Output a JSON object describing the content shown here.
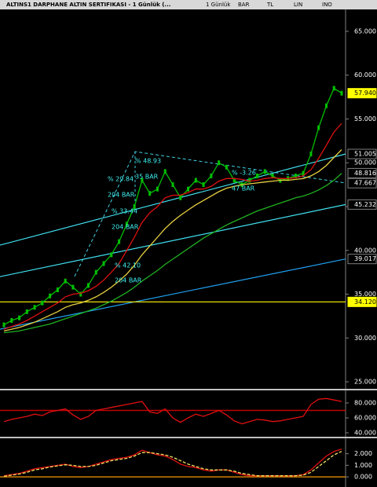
{
  "toolbar": {
    "title": "ALTINS1 DARPHANE ALTIN SERTIFIKASI - 1 Günlük (...",
    "items": [
      "1 Günlük",
      "BAR",
      "TL",
      "LIN",
      "INO"
    ]
  },
  "chart_data": [
    {
      "type": "line",
      "categories": [
        null,
        null,
        null,
        null,
        null,
        null,
        null,
        null,
        null,
        null,
        null,
        null,
        null,
        null,
        null,
        null,
        null,
        null,
        null,
        null,
        null,
        null,
        null,
        null,
        null,
        null,
        null,
        null,
        null,
        null,
        null,
        null,
        null,
        null,
        null,
        null,
        null,
        null,
        null,
        null,
        null,
        null,
        null,
        null,
        null
      ],
      "series": [
        {
          "color": "#00c000",
          "values": [
            31.5,
            32,
            32.3,
            33,
            33.5,
            34,
            34.8,
            35.5,
            36.5,
            35.8,
            35,
            36,
            37.5,
            38.5,
            39.5,
            41,
            43,
            45,
            48,
            46.5,
            47,
            49,
            47.5,
            46,
            47,
            48,
            47.5,
            48.5,
            50,
            49.5,
            48,
            47.5,
            48,
            48.5,
            49,
            48.5,
            48,
            48.2,
            48.5,
            48.8,
            51,
            54,
            56.5,
            58.5,
            57.94
          ]
        },
        {
          "color": "#e01010",
          "values": [
            31,
            31.3,
            31.6,
            32,
            32.5,
            33,
            33.5,
            34,
            34.7,
            35,
            35.1,
            35.4,
            35.9,
            36.6,
            37.5,
            38.5,
            40,
            41.5,
            43.2,
            44.3,
            45,
            46,
            46.3,
            46.3,
            46.6,
            47,
            47,
            47.3,
            47.9,
            48.2,
            48.2,
            48.1,
            47.9,
            48,
            48.2,
            48.3,
            48.2,
            48.2,
            48.3,
            48.5,
            49.2,
            50.5,
            52,
            53.5,
            54.5
          ]
        },
        {
          "color": "#e8d040",
          "values": [
            30.8,
            31,
            31.2,
            31.5,
            31.8,
            32.2,
            32.6,
            33,
            33.5,
            33.8,
            34,
            34.3,
            34.7,
            35.2,
            35.8,
            36.5,
            37.3,
            38.3,
            39.5,
            40.5,
            41.5,
            42.5,
            43.3,
            44,
            44.6,
            45.2,
            45.7,
            46.2,
            46.7,
            47.1,
            47.3,
            47.5,
            47.6,
            47.7,
            47.8,
            47.9,
            48,
            48,
            48.1,
            48.2,
            48.5,
            49,
            49.7,
            50.6,
            51.5
          ]
        },
        {
          "color": "#20b020",
          "values": [
            30.6,
            30.7,
            30.8,
            31,
            31.2,
            31.4,
            31.6,
            31.9,
            32.2,
            32.5,
            32.8,
            33.1,
            33.4,
            33.8,
            34.2,
            34.7,
            35.2,
            35.8,
            36.5,
            37.1,
            37.7,
            38.4,
            39,
            39.6,
            40.2,
            40.8,
            41.4,
            41.9,
            42.4,
            42.9,
            43.3,
            43.7,
            44.1,
            44.5,
            44.8,
            45.1,
            45.4,
            45.7,
            46,
            46.2,
            46.5,
            46.9,
            47.4,
            48,
            48.8
          ]
        }
      ],
      "ylim": [
        24.2,
        67.5
      ],
      "yticks": [
        {
          "value": 25,
          "label": "25.000"
        },
        {
          "value": 30,
          "label": "30.000"
        },
        {
          "value": 35,
          "label": "35.000"
        },
        {
          "value": 40,
          "label": "40.000"
        },
        {
          "value": 45,
          "label": "45.000"
        },
        {
          "value": 50,
          "label": "50.000"
        },
        {
          "value": 55,
          "label": "55.000"
        },
        {
          "value": 60,
          "label": "60.000"
        },
        {
          "value": 65,
          "label": "65.000"
        }
      ],
      "trend_lines": [
        {
          "start": 40.6,
          "end": 51.005,
          "color": "#40e0f0"
        },
        {
          "start": 37,
          "end": 45.232,
          "color": "#40e0f0"
        },
        {
          "start": 31,
          "end": 39.017,
          "color": "#20a0f0"
        },
        {
          "start": 34.12,
          "end": 34.12,
          "color": "#e8e000"
        }
      ],
      "levels": [
        {
          "value": 57.94,
          "label": "57.940",
          "color": "#ffff00"
        },
        {
          "value": 51.005,
          "label": "51.005",
          "color": "#000000"
        },
        {
          "value": 48.816,
          "label": "48.816",
          "color": "#000000"
        },
        {
          "value": 47.667,
          "label": "47.667",
          "color": "#000000"
        },
        {
          "value": 45.232,
          "label": "45.232",
          "color": "#000000"
        },
        {
          "value": 39.017,
          "label": "39.017",
          "color": "#000000"
        },
        {
          "value": 34.12,
          "label": "34.120",
          "color": "#ffff00"
        }
      ],
      "annotations": [
        "% 48.93",
        "35 BAR",
        "% 29.84",
        "204 BAR",
        "% 33.44",
        "204 BAR",
        "% 42.10",
        "204 BAR",
        "% -3.26",
        "47 BAR"
      ]
    },
    {
      "type": "line",
      "series": [
        {
          "color": "#e01010",
          "values": [
            55,
            58,
            60,
            62,
            65,
            63,
            68,
            70,
            72,
            64,
            58,
            62,
            70,
            72,
            74,
            76,
            78,
            80,
            82,
            68,
            66,
            72,
            60,
            54,
            60,
            65,
            62,
            66,
            70,
            64,
            56,
            52,
            55,
            58,
            57,
            55,
            56,
            58,
            60,
            62,
            78,
            85,
            86,
            84,
            82
          ]
        }
      ],
      "level": 70,
      "level_color": "#c00000",
      "ylim": [
        35.8,
        96.8
      ],
      "yticks": [
        {
          "value": 40,
          "label": "40.000"
        },
        {
          "value": 60,
          "label": "60.000"
        },
        {
          "value": 80,
          "label": "80.000"
        }
      ]
    },
    {
      "type": "line",
      "series": [
        {
          "color": "#e01010",
          "values": [
            0.1,
            0.2,
            0.3,
            0.5,
            0.7,
            0.8,
            0.9,
            1.0,
            1.1,
            0.9,
            0.8,
            0.9,
            1.1,
            1.3,
            1.5,
            1.6,
            1.7,
            1.9,
            2.3,
            2.1,
            1.9,
            1.8,
            1.5,
            1.1,
            0.9,
            0.8,
            0.6,
            0.5,
            0.6,
            0.6,
            0.4,
            0.2,
            0.1,
            0.1,
            0.1,
            0.1,
            0.1,
            0.1,
            0.1,
            0.2,
            0.6,
            1.2,
            1.8,
            2.2,
            2.4
          ]
        },
        {
          "color": "#f0e060",
          "dashed": true,
          "values": [
            0.05,
            0.15,
            0.25,
            0.4,
            0.6,
            0.7,
            0.85,
            0.95,
            1.05,
            1.0,
            0.9,
            0.9,
            1.0,
            1.2,
            1.4,
            1.5,
            1.6,
            1.8,
            2.1,
            2.1,
            2.0,
            1.9,
            1.7,
            1.4,
            1.1,
            0.9,
            0.7,
            0.6,
            0.6,
            0.6,
            0.5,
            0.3,
            0.2,
            0.1,
            0.1,
            0.1,
            0.1,
            0.1,
            0.1,
            0.15,
            0.4,
            0.9,
            1.4,
            1.9,
            2.2
          ]
        }
      ],
      "level": 0,
      "level_color": "#d08000",
      "ylim": [
        -0.87,
        3.33
      ],
      "yticks": [
        {
          "value": 0,
          "label": "0.000"
        },
        {
          "value": 1,
          "label": "1.000"
        },
        {
          "value": 2,
          "label": "2.000"
        }
      ]
    }
  ]
}
